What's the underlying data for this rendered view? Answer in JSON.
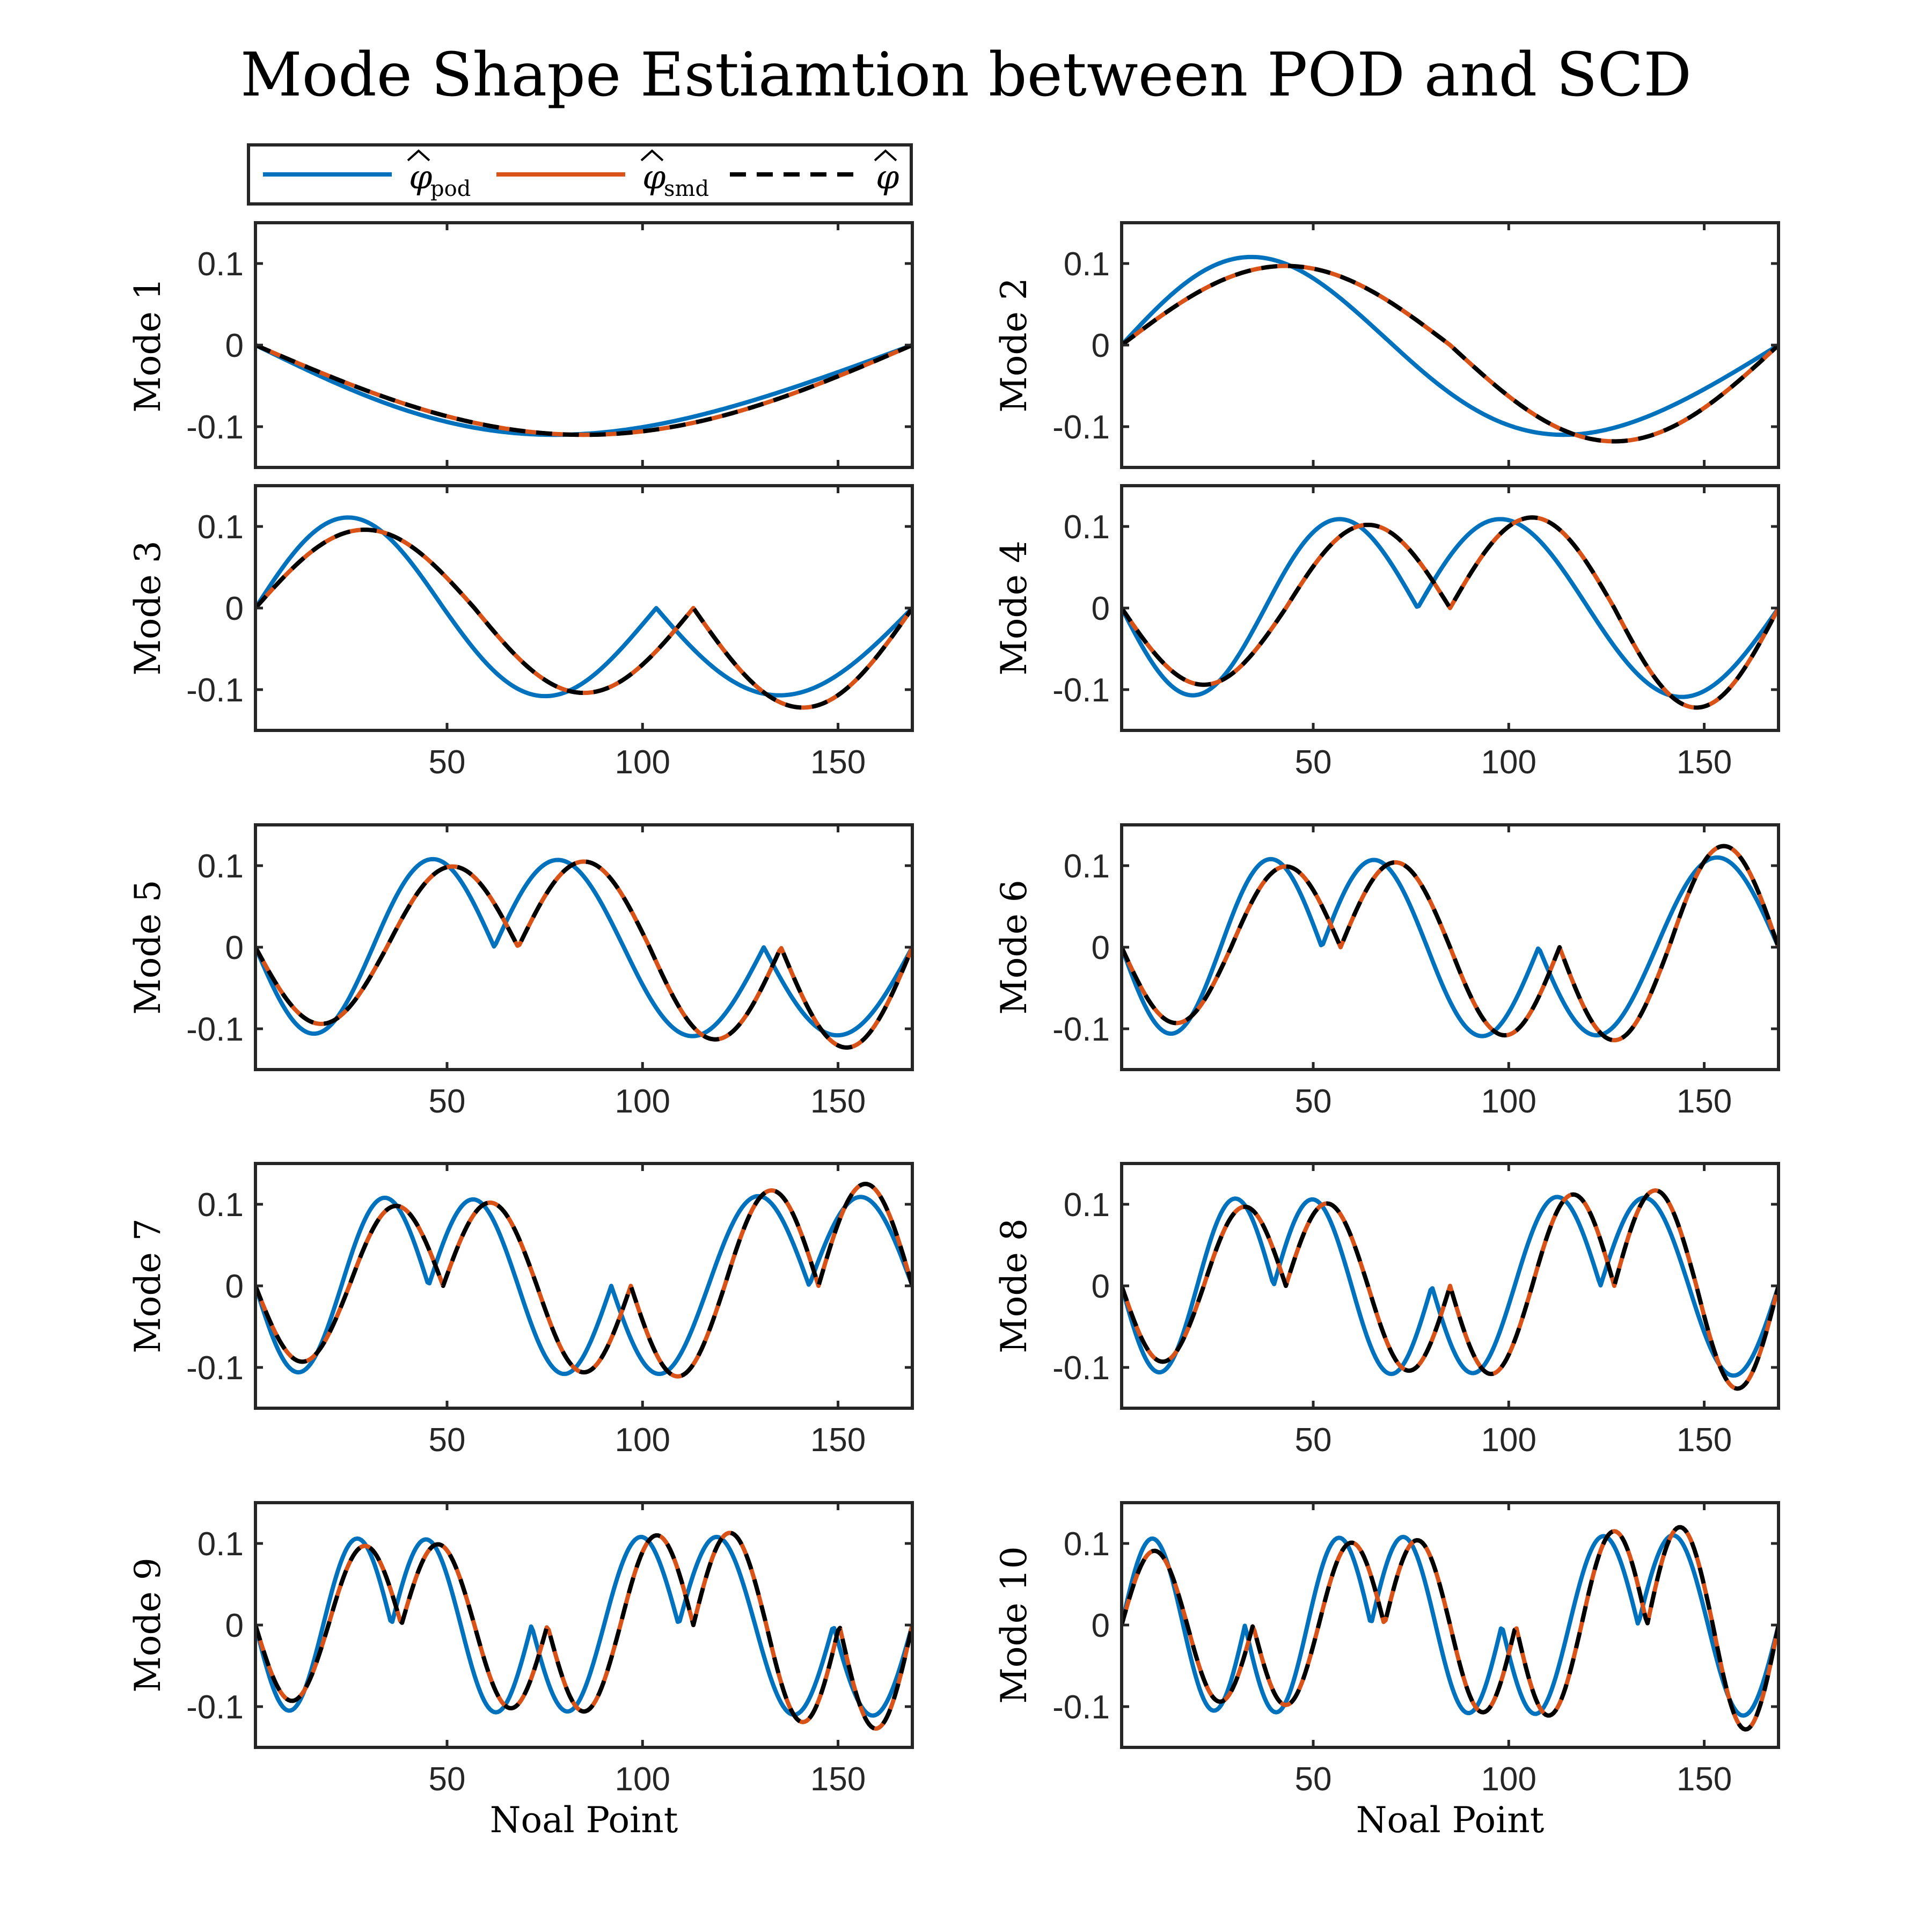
{
  "figure": {
    "title": "Mode Shape Estiamtion between POD and SCD"
  },
  "legend": {
    "placement": "top-left, above Mode 1 axes",
    "entries": [
      {
        "label_base": "φ",
        "label_sub": "pod",
        "hat": true,
        "color": "#0072BD",
        "style": "solid"
      },
      {
        "label_base": "φ",
        "label_sub": "smd",
        "hat": true,
        "color": "#D95319",
        "style": "solid"
      },
      {
        "label_base": "φ",
        "label_sub": "",
        "hat": true,
        "color": "#000000",
        "style": "dashed"
      }
    ]
  },
  "colors": {
    "pod": "#0072BD",
    "smd": "#D95319",
    "true": "#000000",
    "axes": "#262626"
  },
  "chart_data": {
    "type": "line",
    "layout": "5x2 grid of subplots",
    "xlim": [
      1,
      169
    ],
    "ylim": [
      -0.15,
      0.15
    ],
    "xticks": [
      50,
      100,
      150
    ],
    "yticks": [
      -0.1,
      0,
      0.1
    ],
    "ytick_labels": [
      "-0.1",
      "0",
      "0.1"
    ],
    "xlabel": "Noal Point",
    "grid": false,
    "series_names": [
      "pod",
      "smd",
      "true"
    ],
    "subplots": [
      {
        "ylabel": "Mode 1",
        "mode": 1,
        "pod": {
          "amps": [
            -0.11
          ],
          "shift": 0.045
        },
        "true": {
          "amps": [
            -0.11
          ],
          "shift": 0.0
        }
      },
      {
        "ylabel": "Mode 2",
        "mode": 2,
        "pod": {
          "amps": [
            0.108,
            -0.11
          ],
          "shift": 0.09
        },
        "true": {
          "amps": [
            0.097,
            -0.118
          ],
          "shift": 0.0
        }
      },
      {
        "ylabel": "Mode 3",
        "mode": 3,
        "pod": {
          "amps": [
            0.111,
            -0.108,
            0.107
          ],
          "shift": 0.06
        },
        "true": {
          "amps": [
            0.096,
            -0.104,
            0.122
          ],
          "shift": 0.0
        }
      },
      {
        "ylabel": "Mode 4",
        "mode": 4,
        "pod": {
          "amps": [
            -0.107,
            0.109,
            -0.109,
            0.109
          ],
          "shift": 0.05
        },
        "true": {
          "amps": [
            -0.094,
            0.102,
            -0.111,
            0.122
          ],
          "shift": 0.0
        }
      },
      {
        "ylabel": "Mode 5",
        "mode": 5,
        "pod": {
          "amps": [
            -0.106,
            0.108,
            -0.107,
            0.109,
            -0.108
          ],
          "shift": 0.04
        },
        "true": {
          "amps": [
            -0.094,
            0.099,
            -0.105,
            0.113,
            -0.123
          ],
          "shift": 0.0
        }
      },
      {
        "ylabel": "Mode 6",
        "mode": 6,
        "pod": {
          "amps": [
            -0.106,
            0.108,
            -0.107,
            0.109,
            -0.108,
            0.11
          ],
          "shift": 0.035
        },
        "true": {
          "amps": [
            -0.093,
            0.099,
            -0.104,
            0.108,
            -0.114,
            0.124
          ],
          "shift": 0.0
        }
      },
      {
        "ylabel": "Mode 7",
        "mode": 7,
        "pod": {
          "amps": [
            -0.106,
            0.108,
            -0.106,
            0.108,
            -0.108,
            0.11,
            -0.109
          ],
          "shift": 0.03
        },
        "true": {
          "amps": [
            -0.093,
            0.098,
            -0.102,
            0.106,
            -0.111,
            0.117,
            -0.125
          ],
          "shift": 0.0
        }
      },
      {
        "ylabel": "Mode 8",
        "mode": 8,
        "pod": {
          "amps": [
            -0.106,
            0.107,
            -0.106,
            0.108,
            -0.107,
            0.109,
            -0.108,
            0.11
          ],
          "shift": 0.028
        },
        "true": {
          "amps": [
            -0.093,
            0.097,
            -0.101,
            0.104,
            -0.108,
            0.112,
            -0.117,
            0.126
          ],
          "shift": 0.0
        }
      },
      {
        "ylabel": "Mode 9",
        "mode": 9,
        "pod": {
          "amps": [
            -0.105,
            0.106,
            -0.105,
            0.107,
            -0.106,
            0.108,
            -0.108,
            0.11,
            -0.111
          ],
          "shift": 0.025
        },
        "true": {
          "amps": [
            -0.093,
            0.097,
            -0.099,
            0.102,
            -0.106,
            0.11,
            -0.113,
            0.119,
            -0.127
          ],
          "shift": 0.0
        }
      },
      {
        "ylabel": "Mode 10",
        "mode": 10,
        "pod": {
          "amps": [
            0.106,
            -0.105,
            0.107,
            -0.107,
            0.108,
            -0.108,
            0.109,
            -0.109,
            0.11,
            -0.111
          ],
          "shift": 0.022
        },
        "true": {
          "amps": [
            0.091,
            -0.094,
            0.098,
            -0.101,
            0.104,
            -0.107,
            0.111,
            -0.115,
            0.12,
            -0.128
          ],
          "shift": 0.0
        }
      }
    ]
  }
}
